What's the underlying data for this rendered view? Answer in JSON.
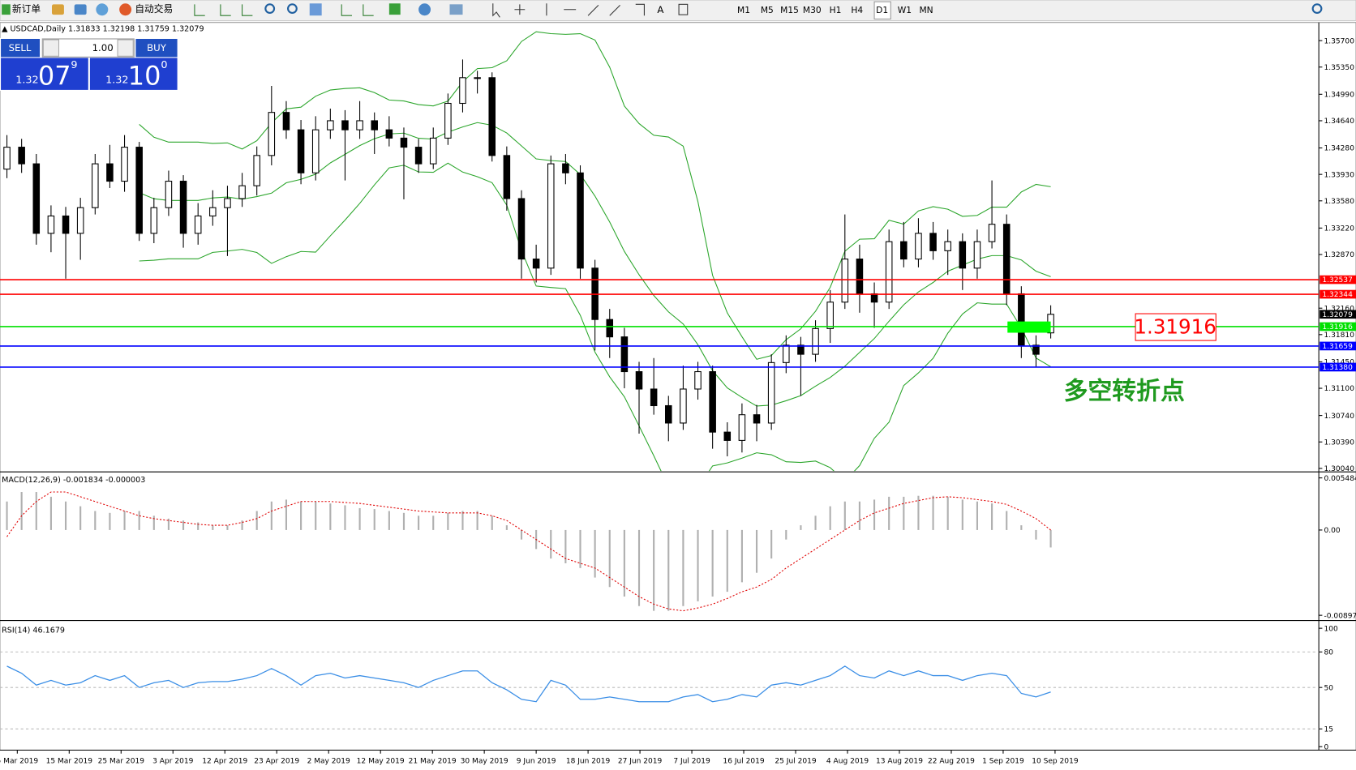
{
  "toolbar": {
    "new_order": "新订单",
    "auto_trade": "自动交易",
    "timeframes": [
      "M1",
      "M5",
      "M15",
      "M30",
      "H1",
      "H4",
      "D1",
      "W1",
      "MN"
    ]
  },
  "trade_panel": {
    "sell": "SELL",
    "buy": "BUY",
    "lot": "1.00",
    "bid": [
      "1.32",
      "07",
      "9"
    ],
    "ask": [
      "1.32",
      "10",
      "0"
    ]
  },
  "chart": {
    "symbol": "USDCAD,Daily",
    "ylim": [
      1.3004,
      1.357
    ],
    "price_ticks": [
      {
        "value": 1.357,
        "label": "1.35700"
      },
      {
        "value": 1.3535,
        "label": "1.35350"
      },
      {
        "value": 1.3499,
        "label": "1.34990"
      },
      {
        "value": 1.3464,
        "label": "1.34640"
      },
      {
        "value": 1.3428,
        "label": "1.34280"
      },
      {
        "value": 1.3393,
        "label": "1.33930"
      },
      {
        "value": 1.3358,
        "label": "1.33580"
      },
      {
        "value": 1.3322,
        "label": "1.33220"
      },
      {
        "value": 1.3287,
        "label": "1.32870"
      },
      {
        "value": 1.3216,
        "label": "1.32160"
      },
      {
        "value": 1.3181,
        "label": "1.31810"
      },
      {
        "value": 1.3145,
        "label": "1.31450"
      },
      {
        "value": 1.311,
        "label": "1.31100"
      },
      {
        "value": 1.3074,
        "label": "1.30740"
      },
      {
        "value": 1.3039,
        "label": "1.30390"
      },
      {
        "value": 1.3004,
        "label": "1.30040"
      }
    ],
    "levels": [
      {
        "value": 1.32537,
        "color": "#ff0000"
      },
      {
        "value": 1.32344,
        "color": "#ff0000"
      },
      {
        "value": 1.31916,
        "color": "#00e000"
      },
      {
        "value": 1.31659,
        "color": "#0000ff"
      },
      {
        "value": {
          "value": 1.3138,
          "label": "1.31380"
        },
        "color": "#0000ff"
      }
    ],
    "candles": [
      [
        1.34,
        1.3445,
        1.3388,
        1.3429
      ],
      [
        1.3429,
        1.344,
        1.3395,
        1.3407
      ],
      [
        1.3407,
        1.342,
        1.33,
        1.3315
      ],
      [
        1.3315,
        1.3352,
        1.329,
        1.3338
      ],
      [
        1.3338,
        1.335,
        1.3255,
        1.3315
      ],
      [
        1.3315,
        1.3362,
        1.328,
        1.3349
      ],
      [
        1.3349,
        1.342,
        1.334,
        1.3407
      ],
      [
        1.3407,
        1.3432,
        1.3375,
        1.3384
      ],
      [
        1.3384,
        1.3445,
        1.337,
        1.3429
      ],
      [
        1.3429,
        1.3436,
        1.3305,
        1.3315
      ],
      [
        1.3315,
        1.3362,
        1.3302,
        1.3349
      ],
      [
        1.3349,
        1.3398,
        1.3338,
        1.3384
      ],
      [
        1.3384,
        1.3392,
        1.3296,
        1.3315
      ],
      [
        1.3315,
        1.3355,
        1.33,
        1.3338
      ],
      [
        1.3338,
        1.3372,
        1.3325,
        1.3349
      ],
      [
        1.3349,
        1.3378,
        1.3285,
        1.3361
      ],
      [
        1.3361,
        1.3395,
        1.335,
        1.3378
      ],
      [
        1.3378,
        1.343,
        1.3365,
        1.3418
      ],
      [
        1.3418,
        1.351,
        1.3405,
        1.3475
      ],
      [
        1.3475,
        1.349,
        1.344,
        1.3452
      ],
      [
        1.3452,
        1.3465,
        1.338,
        1.3395
      ],
      [
        1.3395,
        1.347,
        1.3385,
        1.3452
      ],
      [
        1.3452,
        1.348,
        1.344,
        1.3464
      ],
      [
        1.3464,
        1.3478,
        1.3385,
        1.3452
      ],
      [
        1.3452,
        1.349,
        1.344,
        1.3464
      ],
      [
        1.3464,
        1.3475,
        1.342,
        1.3452
      ],
      [
        1.3452,
        1.347,
        1.343,
        1.3441
      ],
      [
        1.3441,
        1.3455,
        1.336,
        1.3429
      ],
      [
        1.3429,
        1.344,
        1.3395,
        1.3407
      ],
      [
        1.3407,
        1.3455,
        1.34,
        1.3441
      ],
      [
        1.3441,
        1.35,
        1.3432,
        1.3487
      ],
      [
        1.3487,
        1.3545,
        1.3475,
        1.3521
      ],
      [
        1.3521,
        1.353,
        1.35,
        1.3521
      ],
      [
        1.3521,
        1.3528,
        1.341,
        1.3418
      ],
      [
        1.3418,
        1.343,
        1.3345,
        1.3361
      ],
      [
        1.3361,
        1.3372,
        1.3255,
        1.3281
      ],
      [
        1.3281,
        1.33,
        1.325,
        1.3269
      ],
      [
        1.3269,
        1.3418,
        1.326,
        1.3407
      ],
      [
        1.3407,
        1.342,
        1.338,
        1.3395
      ],
      [
        1.3395,
        1.3405,
        1.3255,
        1.3269
      ],
      [
        1.3269,
        1.328,
        1.316,
        1.3201
      ],
      [
        1.3201,
        1.3215,
        1.315,
        1.3178
      ],
      [
        1.3178,
        1.319,
        1.311,
        1.3132
      ],
      [
        1.3132,
        1.3145,
        1.305,
        1.3109
      ],
      [
        1.3109,
        1.315,
        1.3075,
        1.3087
      ],
      [
        1.3087,
        1.31,
        1.304,
        1.3064
      ],
      [
        1.3064,
        1.314,
        1.3055,
        1.3109
      ],
      [
        1.3109,
        1.3145,
        1.3095,
        1.3132
      ],
      [
        1.3132,
        1.314,
        1.303,
        1.3052
      ],
      [
        1.3052,
        1.3065,
        1.302,
        1.3041
      ],
      [
        1.3041,
        1.309,
        1.3025,
        1.3075
      ],
      [
        1.3075,
        1.3088,
        1.304,
        1.3064
      ],
      [
        1.3064,
        1.3155,
        1.3055,
        1.3144
      ],
      [
        1.3144,
        1.318,
        1.313,
        1.3167
      ],
      [
        1.3167,
        1.3178,
        1.31,
        1.3155
      ],
      [
        1.3155,
        1.32,
        1.3145,
        1.3189
      ],
      [
        1.3189,
        1.324,
        1.317,
        1.3224
      ],
      [
        1.3224,
        1.334,
        1.3215,
        1.3281
      ],
      [
        1.3281,
        1.33,
        1.321,
        1.3235
      ],
      [
        1.3235,
        1.325,
        1.319,
        1.3224
      ],
      [
        1.3224,
        1.332,
        1.3215,
        1.3304
      ],
      [
        1.3304,
        1.333,
        1.327,
        1.3281
      ],
      [
        1.3281,
        1.3335,
        1.327,
        1.3315
      ],
      [
        1.3315,
        1.333,
        1.328,
        1.3292
      ],
      [
        1.3292,
        1.332,
        1.326,
        1.3304
      ],
      [
        1.3304,
        1.3315,
        1.324,
        1.3269
      ],
      [
        1.3269,
        1.332,
        1.3255,
        1.3304
      ],
      [
        1.3304,
        1.3385,
        1.3295,
        1.3327
      ],
      [
        1.3327,
        1.334,
        1.322,
        1.3235
      ],
      [
        1.3235,
        1.3245,
        1.315,
        1.3167
      ],
      [
        1.3167,
        1.318,
        1.3138,
        1.3155
      ],
      [
        1.31833,
        1.32198,
        1.31759,
        1.32079
      ]
    ],
    "macd": {
      "label": "MACD(12,26,9)",
      "ylim": [
        -0.008973,
        0.005484
      ],
      "ticks": [
        0.005484,
        {
          "value": 0,
          "label": "0.00"
        },
        -0.008973
      ],
      "histogram": [
        0.003,
        0.004,
        0.004,
        0.0035,
        0.003,
        0.0025,
        0.002,
        0.0018,
        0.002,
        0.002,
        0.0015,
        0.0012,
        0.001,
        0.0008,
        0.0005,
        0.0005,
        0.001,
        0.002,
        0.003,
        0.0032,
        0.003,
        0.003,
        0.0028,
        0.0026,
        0.0023,
        0.0022,
        0.002,
        0.0018,
        0.0015,
        0.0015,
        0.0018,
        0.002,
        0.002,
        0.0015,
        0.0005,
        -0.001,
        -0.002,
        -0.003,
        -0.0035,
        -0.004,
        -0.005,
        -0.006,
        -0.007,
        -0.008,
        -0.0085,
        -0.0085,
        -0.008,
        -0.0075,
        -0.007,
        -0.0065,
        -0.0055,
        -0.0045,
        -0.003,
        -0.001,
        0.0005,
        0.0015,
        0.0025,
        0.003,
        0.003,
        0.0032,
        0.0035,
        0.0035,
        0.0036,
        0.0036,
        0.0035,
        0.0032,
        0.003,
        0.0028,
        0.002,
        0.0005,
        -0.001,
        -0.001834
      ],
      "signal": [
        -0.0007,
        0.0015,
        0.003,
        0.004,
        0.004,
        0.0035,
        0.003,
        0.0025,
        0.002,
        0.0015,
        0.0012,
        0.001,
        0.0008,
        0.0006,
        0.0005,
        0.0005,
        0.0008,
        0.0012,
        0.002,
        0.0025,
        0.003,
        0.003,
        0.003,
        0.0029,
        0.0028,
        0.0026,
        0.0024,
        0.0022,
        0.002,
        0.0019,
        0.0018,
        0.0018,
        0.0018,
        0.0015,
        0.001,
        0,
        -0.001,
        -0.002,
        -0.003,
        -0.0035,
        -0.004,
        -0.005,
        -0.006,
        -0.007,
        -0.0078,
        -0.0083,
        -0.0085,
        -0.0082,
        -0.0078,
        -0.0072,
        -0.0065,
        -0.006,
        -0.0052,
        -0.004,
        -0.003,
        -0.002,
        -0.001,
        0,
        0.001,
        0.0018,
        0.0023,
        0.0028,
        0.0031,
        0.0034,
        0.0035,
        0.0034,
        0.0032,
        0.003,
        0.0027,
        0.002,
        0.0012,
        -3e-06
      ]
    },
    "rsi": {
      "label": "RSI(14)",
      "ylim": [
        0,
        100
      ],
      "ticks": [
        100,
        80,
        50,
        15,
        0
      ],
      "levels": [
        80,
        50,
        15
      ],
      "values": [
        68,
        62,
        52,
        56,
        52,
        54,
        60,
        56,
        60,
        50,
        54,
        56,
        50,
        54,
        55,
        55,
        57,
        60,
        66,
        60,
        52,
        60,
        62,
        58,
        60,
        58,
        56,
        54,
        50,
        56,
        60,
        64,
        64,
        54,
        48,
        40,
        38,
        56,
        52,
        40,
        40,
        42,
        40,
        38,
        38,
        38,
        42,
        44,
        38,
        40,
        44,
        42,
        52,
        54,
        52,
        56,
        60,
        68,
        60,
        58,
        64,
        60,
        64,
        60,
        60,
        56,
        60,
        62,
        60,
        45,
        42,
        46.1679
      ]
    },
    "dates": [
      "5 Mar 2019",
      "15 Mar 2019",
      "25 Mar 2019",
      "3 Apr 2019",
      "12 Apr 2019",
      "23 Apr 2019",
      "2 May 2019",
      "12 May 2019",
      "21 May 2019",
      "30 May 2019",
      "9 Jun 2019",
      "18 Jun 2019",
      "27 Jun 2019",
      "7 Jul 2019",
      "16 Jul 2019",
      "25 Jul 2019",
      "4 Aug 2019",
      "13 Aug 2019",
      "22 Aug 2019",
      "1 Sep 2019",
      "10 Sep 2019"
    ],
    "annotation": "多空转折点"
  }
}
